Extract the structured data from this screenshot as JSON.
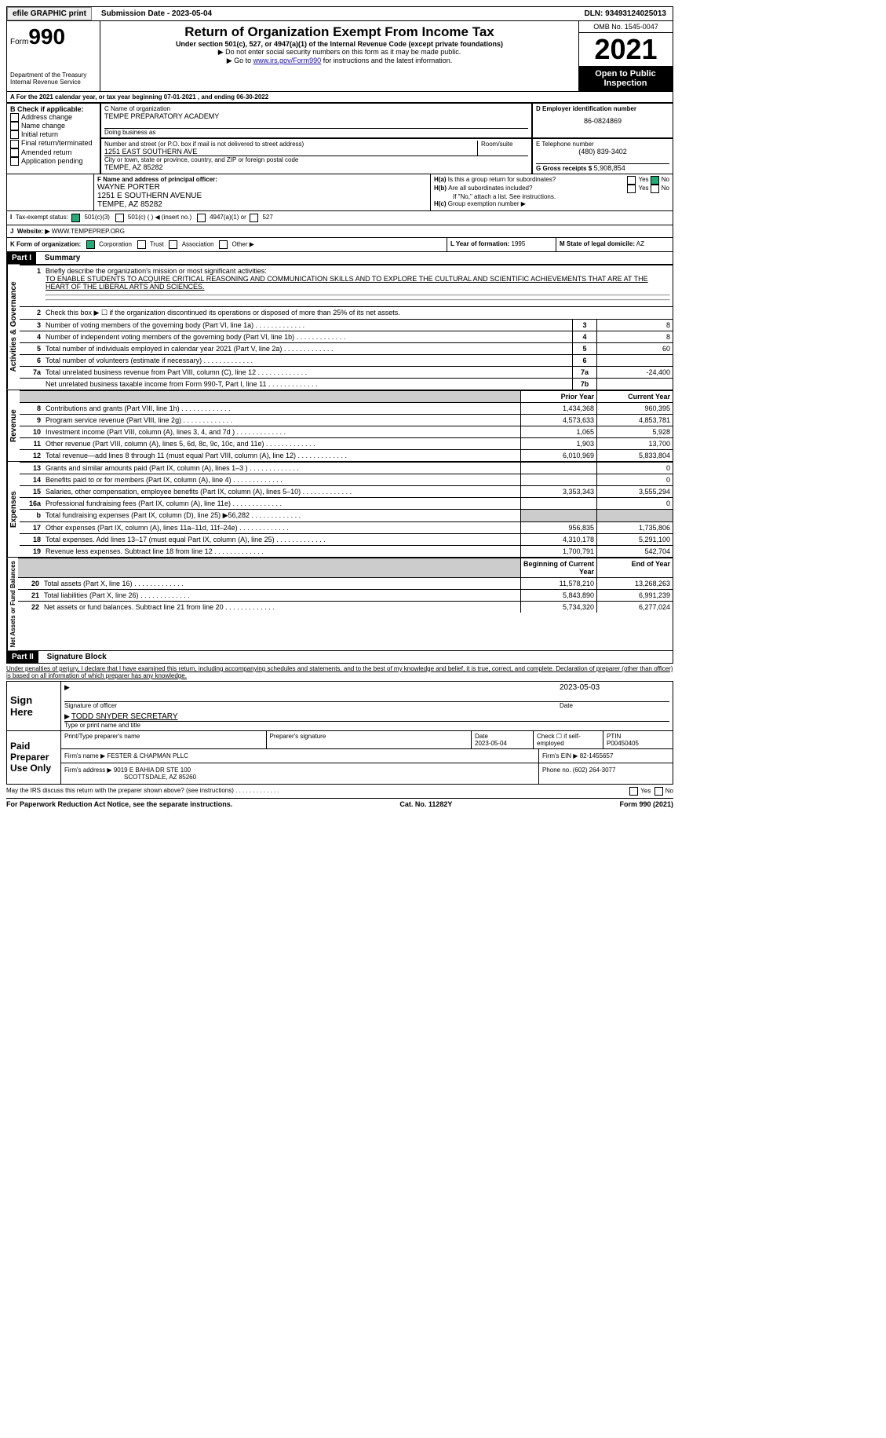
{
  "topbar": {
    "efile": "efile GRAPHIC print",
    "sub": "Submission Date - 2023-05-04",
    "dln": "DLN: 93493124025013"
  },
  "header": {
    "form_word": "Form",
    "form_no": "990",
    "dept": "Department of the Treasury",
    "irs": "Internal Revenue Service",
    "title": "Return of Organization Exempt From Income Tax",
    "sub1": "Under section 501(c), 527, or 4947(a)(1) of the Internal Revenue Code (except private foundations)",
    "sub2": "▶ Do not enter social security numbers on this form as it may be made public.",
    "sub3_pre": "▶ Go to ",
    "sub3_link": "www.irs.gov/Form990",
    "sub3_post": " for instructions and the latest information.",
    "omb": "OMB No. 1545-0047",
    "year": "2021",
    "open": "Open to Public Inspection"
  },
  "periodA": "A For the 2021 calendar year, or tax year beginning 07-01-2021   , and ending 06-30-2022",
  "B": {
    "head": "B Check if applicable:",
    "items": [
      "Address change",
      "Name change",
      "Initial return",
      "Final return/terminated",
      "Amended return",
      "Application pending"
    ]
  },
  "C": {
    "label": "C Name of organization",
    "name": "TEMPE PREPARATORY ACADEMY",
    "dba_label": "Doing business as",
    "addr_label": "Number and street (or P.O. box if mail is not delivered to street address)",
    "addr": "1251 EAST SOUTHERN AVE",
    "room": "Room/suite",
    "city_label": "City or town, state or province, country, and ZIP or foreign postal code",
    "city": "TEMPE, AZ  85282"
  },
  "D": {
    "label": "D Employer identification number",
    "val": "86-0824869"
  },
  "E": {
    "label": "E Telephone number",
    "val": "(480) 839-3402"
  },
  "G": {
    "label": "G Gross receipts $",
    "val": "5,908,854"
  },
  "F": {
    "label": "F Name and address of principal officer:",
    "name": "WAYNE PORTER",
    "addr": "1251 E SOUTHERN AVENUE",
    "city": "TEMPE, AZ  85282"
  },
  "H": {
    "a": "Is this a group return for subordinates?",
    "b": "Are all subordinates included?",
    "b_note": "If \"No,\" attach a list. See instructions.",
    "c": "Group exemption number ▶",
    "yes": "Yes",
    "no": "No"
  },
  "I": {
    "label": "Tax-exempt status:",
    "opts": [
      "501(c)(3)",
      "501(c) (  ) ◀ (insert no.)",
      "4947(a)(1) or",
      "527"
    ]
  },
  "J": {
    "label": "Website: ▶",
    "val": "WWW.TEMPEPREP.ORG"
  },
  "K": {
    "label": "K Form of organization:",
    "opts": [
      "Corporation",
      "Trust",
      "Association",
      "Other ▶"
    ]
  },
  "L": {
    "label": "L Year of formation:",
    "val": "1995"
  },
  "M": {
    "label": "M State of legal domicile:",
    "val": "AZ"
  },
  "partI": {
    "bar": "Part I",
    "title": "Summary"
  },
  "summary": {
    "side1": "Activities & Governance",
    "side2": "Revenue",
    "side3": "Expenses",
    "side4": "Net Assets or Fund Balances",
    "l1": "Briefly describe the organization's mission or most significant activities:",
    "l1v": "TO ENABLE STUDENTS TO ACQUIRE CRITICAL REASONING AND COMMUNICATION SKILLS AND TO EXPLORE THE CULTURAL AND SCIENTIFIC ACHIEVEMENTS THAT ARE AT THE HEART OF THE LIBERAL ARTS AND SCIENCES.",
    "l2": "Check this box ▶ ☐ if the organization discontinued its operations or disposed of more than 25% of its net assets.",
    "rows_top": [
      {
        "n": "3",
        "t": "Number of voting members of the governing body (Part VI, line 1a)",
        "b": "3",
        "v": "8"
      },
      {
        "n": "4",
        "t": "Number of independent voting members of the governing body (Part VI, line 1b)",
        "b": "4",
        "v": "8"
      },
      {
        "n": "5",
        "t": "Total number of individuals employed in calendar year 2021 (Part V, line 2a)",
        "b": "5",
        "v": "60"
      },
      {
        "n": "6",
        "t": "Total number of volunteers (estimate if necessary)",
        "b": "6",
        "v": ""
      },
      {
        "n": "7a",
        "t": "Total unrelated business revenue from Part VIII, column (C), line 12",
        "b": "7a",
        "v": "-24,400"
      },
      {
        "n": "",
        "t": "Net unrelated business taxable income from Form 990-T, Part I, line 11",
        "b": "7b",
        "v": ""
      }
    ],
    "col_prior": "Prior Year",
    "col_curr": "Current Year",
    "rows_rev": [
      {
        "n": "8",
        "t": "Contributions and grants (Part VIII, line 1h)",
        "p": "1,434,368",
        "c": "960,395"
      },
      {
        "n": "9",
        "t": "Program service revenue (Part VIII, line 2g)",
        "p": "4,573,633",
        "c": "4,853,781"
      },
      {
        "n": "10",
        "t": "Investment income (Part VIII, column (A), lines 3, 4, and 7d )",
        "p": "1,065",
        "c": "5,928"
      },
      {
        "n": "11",
        "t": "Other revenue (Part VIII, column (A), lines 5, 6d, 8c, 9c, 10c, and 11e)",
        "p": "1,903",
        "c": "13,700"
      },
      {
        "n": "12",
        "t": "Total revenue—add lines 8 through 11 (must equal Part VIII, column (A), line 12)",
        "p": "6,010,969",
        "c": "5,833,804"
      }
    ],
    "rows_exp": [
      {
        "n": "13",
        "t": "Grants and similar amounts paid (Part IX, column (A), lines 1–3 )",
        "p": "",
        "c": "0"
      },
      {
        "n": "14",
        "t": "Benefits paid to or for members (Part IX, column (A), line 4)",
        "p": "",
        "c": "0"
      },
      {
        "n": "15",
        "t": "Salaries, other compensation, employee benefits (Part IX, column (A), lines 5–10)",
        "p": "3,353,343",
        "c": "3,555,294"
      },
      {
        "n": "16a",
        "t": "Professional fundraising fees (Part IX, column (A), line 11e)",
        "p": "",
        "c": "0"
      },
      {
        "n": "b",
        "t": "Total fundraising expenses (Part IX, column (D), line 25) ▶56,282",
        "p": "gray",
        "c": "gray"
      },
      {
        "n": "17",
        "t": "Other expenses (Part IX, column (A), lines 11a–11d, 11f–24e)",
        "p": "956,835",
        "c": "1,735,806"
      },
      {
        "n": "18",
        "t": "Total expenses. Add lines 13–17 (must equal Part IX, column (A), line 25)",
        "p": "4,310,178",
        "c": "5,291,100"
      },
      {
        "n": "19",
        "t": "Revenue less expenses. Subtract line 18 from line 12",
        "p": "1,700,791",
        "c": "542,704"
      }
    ],
    "col_beg": "Beginning of Current Year",
    "col_end": "End of Year",
    "rows_net": [
      {
        "n": "20",
        "t": "Total assets (Part X, line 16)",
        "p": "11,578,210",
        "c": "13,268,263"
      },
      {
        "n": "21",
        "t": "Total liabilities (Part X, line 26)",
        "p": "5,843,890",
        "c": "6,991,239"
      },
      {
        "n": "22",
        "t": "Net assets or fund balances. Subtract line 21 from line 20",
        "p": "5,734,320",
        "c": "6,277,024"
      }
    ]
  },
  "partII": {
    "bar": "Part II",
    "title": "Signature Block",
    "decl": "Under penalties of perjury, I declare that I have examined this return, including accompanying schedules and statements, and to the best of my knowledge and belief, it is true, correct, and complete. Declaration of preparer (other than officer) is based on all information of which preparer has any knowledge."
  },
  "sign": {
    "label": "Sign Here",
    "sig": "Signature of officer",
    "date_label": "Date",
    "date": "2023-05-03",
    "name": "TODD SNYDER SECRETARY",
    "name_label": "Type or print name and title"
  },
  "prep": {
    "label": "Paid Preparer Use Only",
    "c1": "Print/Type preparer's name",
    "c2": "Preparer's signature",
    "c3": "Date",
    "c3v": "2023-05-04",
    "c4": "Check ☐ if self-employed",
    "c5": "PTIN",
    "c5v": "P00450405",
    "firm_l": "Firm's name   ▶",
    "firm": "FESTER & CHAPMAN PLLC",
    "ein_l": "Firm's EIN ▶",
    "ein": "82-1455657",
    "addr_l": "Firm's address ▶",
    "addr": "9019 E BAHIA DR STE 100",
    "city": "SCOTTSDALE, AZ  85260",
    "ph_l": "Phone no.",
    "ph": "(602) 264-3077"
  },
  "discuss": "May the IRS discuss this return with the preparer shown above? (see instructions)",
  "footer": {
    "pra": "For Paperwork Reduction Act Notice, see the separate instructions.",
    "cat": "Cat. No. 11282Y",
    "form": "Form 990 (2021)"
  }
}
